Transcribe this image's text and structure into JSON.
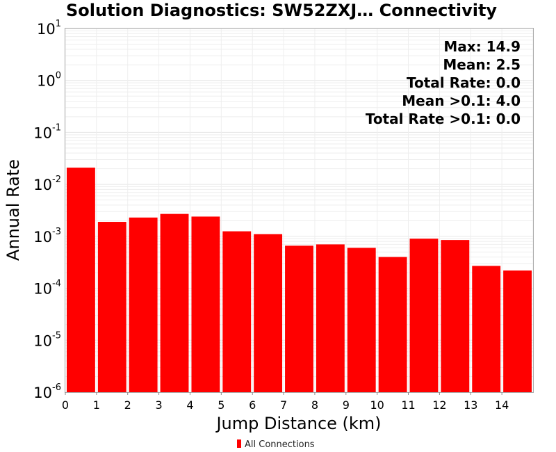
{
  "chart_data": {
    "type": "bar",
    "title": "Solution Diagnostics: SW52ZXJ… Connectivity",
    "xlabel": "Jump Distance (km)",
    "ylabel": "Annual Rate",
    "yscale": "log",
    "ylim": [
      1e-06,
      10
    ],
    "y_ticks": [
      {
        "base": "10",
        "exp": "1"
      },
      {
        "base": "10",
        "exp": "0"
      },
      {
        "base": "10",
        "exp": "-1"
      },
      {
        "base": "10",
        "exp": "-2"
      },
      {
        "base": "10",
        "exp": "-3"
      },
      {
        "base": "10",
        "exp": "-4"
      },
      {
        "base": "10",
        "exp": "-5"
      },
      {
        "base": "10",
        "exp": "-6"
      }
    ],
    "xlim": [
      0,
      15
    ],
    "x_ticks": [
      "0",
      "1",
      "2",
      "3",
      "4",
      "5",
      "6",
      "7",
      "8",
      "9",
      "10",
      "11",
      "12",
      "13",
      "14"
    ],
    "bin_width": 1,
    "bins": [
      {
        "x0": 0,
        "x1": 1,
        "value": 0.021
      },
      {
        "x0": 1,
        "x1": 2,
        "value": 0.0019
      },
      {
        "x0": 2,
        "x1": 3,
        "value": 0.0023
      },
      {
        "x0": 3,
        "x1": 4,
        "value": 0.0027
      },
      {
        "x0": 4,
        "x1": 5,
        "value": 0.0024
      },
      {
        "x0": 5,
        "x1": 6,
        "value": 0.00125
      },
      {
        "x0": 6,
        "x1": 7,
        "value": 0.0011
      },
      {
        "x0": 7,
        "x1": 8,
        "value": 0.00066
      },
      {
        "x0": 8,
        "x1": 9,
        "value": 0.0007
      },
      {
        "x0": 9,
        "x1": 10,
        "value": 0.0006
      },
      {
        "x0": 10,
        "x1": 11,
        "value": 0.0004
      },
      {
        "x0": 11,
        "x1": 12,
        "value": 0.0009
      },
      {
        "x0": 12,
        "x1": 13,
        "value": 0.00085
      },
      {
        "x0": 13,
        "x1": 14,
        "value": 0.00027
      },
      {
        "x0": 14,
        "x1": 15,
        "value": 0.00022
      }
    ],
    "series": [
      {
        "name": "All Connections",
        "color": "#ff0000"
      }
    ],
    "annotations": [
      "Max: 14.9",
      "Mean: 2.5",
      "Total Rate: 0.0",
      "Mean >0.1: 4.0",
      "Total Rate >0.1: 0.0"
    ],
    "annotation_position": "top-right",
    "legend_position": "bottom-center",
    "grid": true,
    "colors": {
      "bar": "#ff0000",
      "grid": "#e6e6e6",
      "frame": "#aaaaaa"
    }
  }
}
